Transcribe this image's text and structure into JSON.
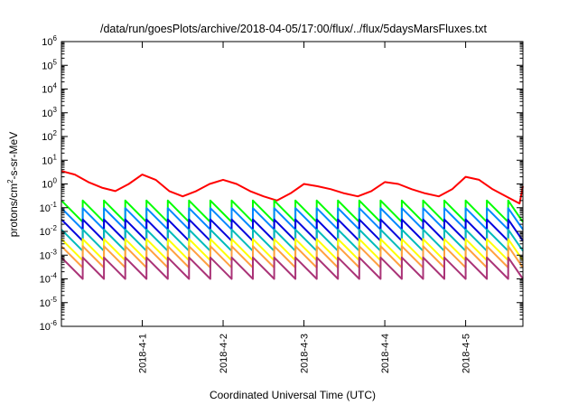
{
  "chart_data": {
    "type": "line",
    "title": "/data/run/goesPlots/archive/2018-04-05/17:00/flux/../flux/5daysMarsFluxes.txt",
    "xlabel": "Coordinated Universal Time (UTC)",
    "ylabel": {
      "base": "protons/cm",
      "sup": "2",
      "rest": "-s-sr-MeV"
    },
    "yscale": "log",
    "ylim": [
      1e-06,
      1000000.0
    ],
    "xlim": [
      "2018-03-31T00:00",
      "2018-04-05T17:00"
    ],
    "grid": false,
    "x_ticks": [
      {
        "at": "2018-04-01T00:00",
        "label": "2018-4-1"
      },
      {
        "at": "2018-04-02T00:00",
        "label": "2018-4-2"
      },
      {
        "at": "2018-04-03T00:00",
        "label": "2018-4-3"
      },
      {
        "at": "2018-04-04T00:00",
        "label": "2018-4-4"
      },
      {
        "at": "2018-04-05T00:00",
        "label": "2018-4-5"
      }
    ],
    "y_ticks": [
      {
        "value": 1e-06,
        "base": "10",
        "exp": "-6"
      },
      {
        "value": 1e-05,
        "base": "10",
        "exp": "-5"
      },
      {
        "value": 0.0001,
        "base": "10",
        "exp": "-4"
      },
      {
        "value": 0.001,
        "base": "10",
        "exp": "-3"
      },
      {
        "value": 0.01,
        "base": "10",
        "exp": "-2"
      },
      {
        "value": 0.1,
        "base": "10",
        "exp": "-1"
      },
      {
        "value": 1,
        "base": "10",
        "exp": "0"
      },
      {
        "value": 10,
        "base": "10",
        "exp": "1"
      },
      {
        "value": 100,
        "base": "10",
        "exp": "2"
      },
      {
        "value": 1000,
        "base": "10",
        "exp": "3"
      },
      {
        "value": 10000,
        "base": "10",
        "exp": "4"
      },
      {
        "value": 100000,
        "base": "10",
        "exp": "5"
      },
      {
        "value": 1000000,
        "base": "10",
        "exp": "6"
      }
    ],
    "series": [
      {
        "color": "#ff0000",
        "x": [
          "2018-03-31T00:00",
          "2018-03-31T04:00",
          "2018-03-31T08:00",
          "2018-03-31T12:00",
          "2018-03-31T16:00",
          "2018-03-31T20:00",
          "2018-04-01T00:00",
          "2018-04-01T04:00",
          "2018-04-01T08:00",
          "2018-04-01T12:00",
          "2018-04-01T16:00",
          "2018-04-01T20:00",
          "2018-04-02T00:00",
          "2018-04-02T04:00",
          "2018-04-02T08:00",
          "2018-04-02T12:00",
          "2018-04-02T16:00",
          "2018-04-02T20:00",
          "2018-04-03T00:00",
          "2018-04-03T04:00",
          "2018-04-03T08:00",
          "2018-04-03T12:00",
          "2018-04-03T16:00",
          "2018-04-03T20:00",
          "2018-04-04T00:00",
          "2018-04-04T04:00",
          "2018-04-04T08:00",
          "2018-04-04T12:00",
          "2018-04-04T16:00",
          "2018-04-04T20:00",
          "2018-04-05T00:00",
          "2018-04-05T04:00",
          "2018-04-05T08:00",
          "2018-04-05T12:00",
          "2018-04-05T16:00",
          "2018-04-05T17:00"
        ],
        "y": [
          3.5,
          2.5,
          1.2,
          0.7,
          0.5,
          1.0,
          2.5,
          1.5,
          0.5,
          0.3,
          0.5,
          1.0,
          1.5,
          1.0,
          0.5,
          0.3,
          0.2,
          0.4,
          1.0,
          0.8,
          0.6,
          0.4,
          0.3,
          0.5,
          1.2,
          1.0,
          0.6,
          0.4,
          0.3,
          0.6,
          2.0,
          1.5,
          0.6,
          0.3,
          0.15,
          0.8
        ]
      },
      {
        "color": "#00ff00",
        "base": 0.025,
        "amp": 8
      },
      {
        "color": "#0088ff",
        "base": 0.012,
        "amp": 8
      },
      {
        "color": "#0000dd",
        "base": 0.004,
        "amp": 8
      },
      {
        "color": "#00bbbb",
        "base": 0.0015,
        "amp": 8
      },
      {
        "color": "#ffff00",
        "base": 0.0006,
        "amp": 8
      },
      {
        "color": "#ffa040",
        "base": 0.0003,
        "amp": 8
      },
      {
        "color": "#aa3377",
        "base": 0.0001,
        "amp": 8
      }
    ],
    "cycles_per_day": 3.8
  }
}
